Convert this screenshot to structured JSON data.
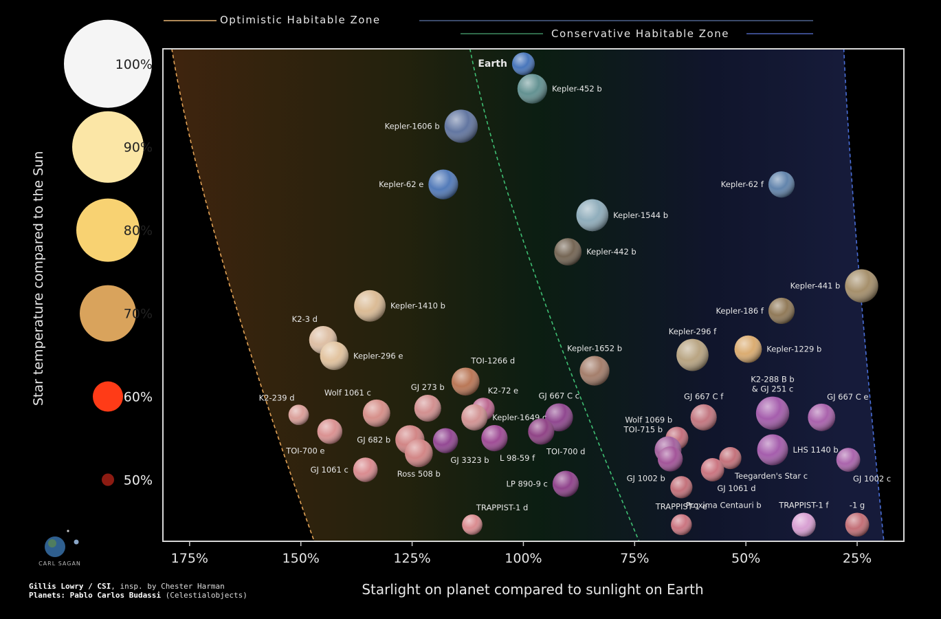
{
  "chart_data": {
    "type": "scatter",
    "xlabel": "Starlight on planet compared to sunlight on Earth",
    "ylabel": "Star temperature compared to the Sun",
    "xlim": [
      1.81,
      0.145
    ],
    "ylim": [
      0.426,
      1.018
    ],
    "x_ticks": [
      {
        "value": 1.75,
        "label": "175%"
      },
      {
        "value": 1.5,
        "label": "150%"
      },
      {
        "value": 1.25,
        "label": "125%"
      },
      {
        "value": 1.0,
        "label": "100%"
      },
      {
        "value": 0.75,
        "label": "75%"
      },
      {
        "value": 0.5,
        "label": "50%"
      },
      {
        "value": 0.25,
        "label": "25%"
      }
    ],
    "y_scale_stars": [
      {
        "value": 1.0,
        "label": "100%",
        "color": "#f5f5f5"
      },
      {
        "value": 0.9,
        "label": "90%",
        "color": "#fbe6a6"
      },
      {
        "value": 0.8,
        "label": "80%",
        "color": "#f8d272"
      },
      {
        "value": 0.7,
        "label": "70%",
        "color": "#d9a35c"
      },
      {
        "value": 0.6,
        "label": "60%",
        "color": "#ff3b17"
      },
      {
        "value": 0.5,
        "label": "50%",
        "color": "#8c1b12"
      }
    ],
    "zones": [
      {
        "name": "Optimistic Habitable Zone",
        "inner_top": 1.79,
        "inner_bottom": 1.47,
        "outer_top": 0.28,
        "outer_bottom": 0.19,
        "inner_color": "#e3a356",
        "outer_color": "#4a6fd8"
      },
      {
        "name": "Conservative Habitable Zone",
        "inner_top": 1.12,
        "inner_bottom": 0.74,
        "outer_top": 0.28,
        "outer_bottom": 0.19,
        "inner_color": "#3fbf73",
        "outer_color": "#4a6fd8"
      }
    ],
    "planets": [
      {
        "name": "Earth",
        "x": 1.0,
        "y": 1.0,
        "size": 1.0,
        "color": "#3f6fb8",
        "label_side": "left",
        "bold": true
      },
      {
        "name": "Kepler-452 b",
        "x": 0.98,
        "y": 0.97,
        "size": 1.6,
        "color": "#5b8c8c",
        "label_side": "right"
      },
      {
        "name": "Kepler-1606 b",
        "x": 1.14,
        "y": 0.925,
        "size": 1.9,
        "color": "#5a6f9c",
        "label_side": "left"
      },
      {
        "name": "Kepler-62 e",
        "x": 1.18,
        "y": 0.855,
        "size": 1.6,
        "color": "#4a74b5",
        "label_side": "left"
      },
      {
        "name": "Kepler-62 f",
        "x": 0.42,
        "y": 0.855,
        "size": 1.3,
        "color": "#5a7ea8",
        "label_side": "left"
      },
      {
        "name": "Kepler-1544 b",
        "x": 0.845,
        "y": 0.818,
        "size": 1.8,
        "color": "#8aa9b8",
        "label_side": "right"
      },
      {
        "name": "Kepler-442 b",
        "x": 0.9,
        "y": 0.774,
        "size": 1.4,
        "color": "#6e5e4c",
        "label_side": "right"
      },
      {
        "name": "Kepler-441 b",
        "x": 0.24,
        "y": 0.733,
        "size": 1.9,
        "color": "#a18a64",
        "label_side": "left"
      },
      {
        "name": "Kepler-1410 b",
        "x": 1.345,
        "y": 0.709,
        "size": 1.75,
        "color": "#d9b890",
        "label_side": "right"
      },
      {
        "name": "Kepler-186 f",
        "x": 0.42,
        "y": 0.703,
        "size": 1.3,
        "color": "#8b7350",
        "label_side": "left"
      },
      {
        "name": "K2-3 d",
        "x": 1.45,
        "y": 0.668,
        "size": 1.45,
        "color": "#dcbca0",
        "label_side": "above-left"
      },
      {
        "name": "Kepler-296 e",
        "x": 1.425,
        "y": 0.649,
        "size": 1.5,
        "color": "#e0c09a",
        "label_side": "right"
      },
      {
        "name": "Kepler-296 f",
        "x": 0.62,
        "y": 0.65,
        "size": 1.8,
        "color": "#b5a07c",
        "label_side": "above"
      },
      {
        "name": "Kepler-1229 b",
        "x": 0.495,
        "y": 0.657,
        "size": 1.4,
        "color": "#d9a86a",
        "label_side": "right"
      },
      {
        "name": "Kepler-1652 b",
        "x": 0.84,
        "y": 0.631,
        "size": 1.6,
        "color": "#a07864",
        "label_side": "above"
      },
      {
        "name": "TOI-1266 d",
        "x": 1.13,
        "y": 0.618,
        "size": 1.45,
        "color": "#b6704e",
        "label_side": "above-right"
      },
      {
        "name": "K2-288 B b\n& GJ 251 c",
        "x": 0.44,
        "y": 0.58,
        "size": 1.9,
        "color": "#a055a8",
        "label_side": "above"
      },
      {
        "name": "GJ 667 C e",
        "x": 0.33,
        "y": 0.575,
        "size": 1.4,
        "color": "#a55aa8",
        "label_side": "above-right"
      },
      {
        "name": "GJ 667 C f",
        "x": 0.595,
        "y": 0.575,
        "size": 1.3,
        "color": "#c0707a",
        "label_side": "above"
      },
      {
        "name": "GJ 667 C c",
        "x": 0.92,
        "y": 0.575,
        "size": 1.45,
        "color": "#8a3e8a",
        "label_side": "above"
      },
      {
        "name": "K2-72 e",
        "x": 1.09,
        "y": 0.585,
        "size": 1.0,
        "color": "#b9608a",
        "label_side": "above-right"
      },
      {
        "name": "Kepler-1649 c",
        "x": 1.11,
        "y": 0.575,
        "size": 1.3,
        "color": "#d08f8f",
        "label_side": "right"
      },
      {
        "name": "GJ 273 b",
        "x": 1.215,
        "y": 0.586,
        "size": 1.35,
        "color": "#d08a8a",
        "label_side": "above"
      },
      {
        "name": "Wolf 1061 c",
        "x": 1.33,
        "y": 0.58,
        "size": 1.4,
        "color": "#d48a84",
        "label_side": "above-left"
      },
      {
        "name": "K2-239 d",
        "x": 1.505,
        "y": 0.578,
        "size": 0.8,
        "color": "#d89a94",
        "label_side": "above-left"
      },
      {
        "name": "TOI-700 e",
        "x": 1.435,
        "y": 0.558,
        "size": 1.2,
        "color": "#d88c8c",
        "label_side": "below-left"
      },
      {
        "name": "GJ 682 b",
        "x": 1.255,
        "y": 0.548,
        "size": 1.55,
        "color": "#cf7f7f",
        "label_side": "left"
      },
      {
        "name": "Ross 508 b",
        "x": 1.235,
        "y": 0.532,
        "size": 1.45,
        "color": "#d08080",
        "label_side": "below"
      },
      {
        "name": "GJ 3323 b",
        "x": 1.175,
        "y": 0.547,
        "size": 1.2,
        "color": "#8e3f8e",
        "label_side": "below-right"
      },
      {
        "name": "L 98-59 f",
        "x": 1.065,
        "y": 0.55,
        "size": 1.3,
        "color": "#9a4390",
        "label_side": "below-right"
      },
      {
        "name": "TOI-700 d",
        "x": 0.96,
        "y": 0.558,
        "size": 1.3,
        "color": "#8a3a80",
        "label_side": "below-right"
      },
      {
        "name": "Wolf 1069 b",
        "x": 0.655,
        "y": 0.55,
        "size": 1.0,
        "color": "#c06876",
        "label_side": "above-left"
      },
      {
        "name": "TOI-715 b",
        "x": 0.675,
        "y": 0.536,
        "size": 1.35,
        "color": "#a05a9a",
        "label_side": "above-left"
      },
      {
        "name": "GJ 1002 b",
        "x": 0.67,
        "y": 0.525,
        "size": 1.2,
        "color": "#9e4c94",
        "label_side": "below-left"
      },
      {
        "name": "LHS 1140 b",
        "x": 0.44,
        "y": 0.536,
        "size": 1.7,
        "color": "#a055a8",
        "label_side": "right"
      },
      {
        "name": "GJ 1002 c",
        "x": 0.27,
        "y": 0.524,
        "size": 1.1,
        "color": "#a65ca8",
        "label_side": "below-right"
      },
      {
        "name": "Teegarden's Star c",
        "x": 0.535,
        "y": 0.526,
        "size": 0.95,
        "color": "#c06a74",
        "label_side": "below-right"
      },
      {
        "name": "GJ 1061 d",
        "x": 0.575,
        "y": 0.512,
        "size": 1.05,
        "color": "#c86e7a",
        "label_side": "below-right"
      },
      {
        "name": "GJ 1061 c",
        "x": 1.355,
        "y": 0.512,
        "size": 1.15,
        "color": "#d8868a",
        "label_side": "left"
      },
      {
        "name": "LP 890-9 c",
        "x": 0.905,
        "y": 0.495,
        "size": 1.3,
        "color": "#8a3a86",
        "label_side": "left"
      },
      {
        "name": "Proxima Centauri b",
        "x": 0.645,
        "y": 0.491,
        "size": 0.95,
        "color": "#c06a74",
        "label_side": "below-right"
      },
      {
        "name": "TRAPPIST-1 d",
        "x": 1.115,
        "y": 0.446,
        "size": 0.8,
        "color": "#d8868a",
        "label_side": "above-right"
      },
      {
        "name": "TRAPPIST-1 e",
        "x": 0.645,
        "y": 0.446,
        "size": 0.85,
        "color": "#c86e7a",
        "label_side": "above"
      },
      {
        "name": "TRAPPIST-1 f",
        "x": 0.37,
        "y": 0.446,
        "size": 1.1,
        "color": "#d69ad0",
        "label_side": "above"
      },
      {
        "name": "-1 g",
        "x": 0.25,
        "y": 0.446,
        "size": 1.1,
        "color": "#c06870",
        "label_side": "above"
      }
    ]
  },
  "legend": {
    "optimistic": "Optimistic Habitable Zone",
    "conservative": "Conservative Habitable Zone"
  },
  "credits": {
    "line1_bold": "Gillis Lowry / CSI",
    "line1_rest": ", insp. by Chester Harman",
    "line2_bold": "Planets: Pablo Carlos Budassi",
    "line2_rest": " (Celestialobjects)"
  },
  "logo_text": "CARL SAGAN"
}
